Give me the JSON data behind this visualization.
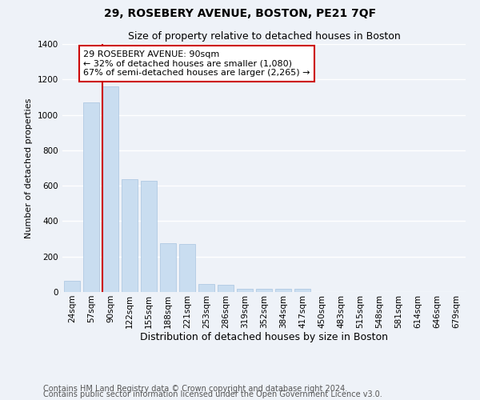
{
  "title": "29, ROSEBERY AVENUE, BOSTON, PE21 7QF",
  "subtitle": "Size of property relative to detached houses in Boston",
  "xlabel": "Distribution of detached houses by size in Boston",
  "ylabel": "Number of detached properties",
  "categories": [
    "24sqm",
    "57sqm",
    "90sqm",
    "122sqm",
    "155sqm",
    "188sqm",
    "221sqm",
    "253sqm",
    "286sqm",
    "319sqm",
    "352sqm",
    "384sqm",
    "417sqm",
    "450sqm",
    "483sqm",
    "515sqm",
    "548sqm",
    "581sqm",
    "614sqm",
    "646sqm",
    "679sqm"
  ],
  "values": [
    65,
    1070,
    1160,
    635,
    630,
    275,
    270,
    45,
    40,
    20,
    20,
    20,
    20,
    0,
    0,
    0,
    0,
    0,
    0,
    0,
    0
  ],
  "bar_color": "#c9ddf0",
  "bar_edge_color": "#a8c4e0",
  "red_line_index": 2,
  "red_line_color": "#cc0000",
  "annotation_line1": "29 ROSEBERY AVENUE: 90sqm",
  "annotation_line2": "← 32% of detached houses are smaller (1,080)",
  "annotation_line3": "67% of semi-detached houses are larger (2,265) →",
  "annotation_box_color": "#ffffff",
  "annotation_box_edge_color": "#cc0000",
  "ylim": [
    0,
    1400
  ],
  "background_color": "#eef2f8",
  "grid_color": "#ffffff",
  "footer_line1": "Contains HM Land Registry data © Crown copyright and database right 2024.",
  "footer_line2": "Contains public sector information licensed under the Open Government Licence v3.0.",
  "title_fontsize": 10,
  "subtitle_fontsize": 9,
  "xlabel_fontsize": 9,
  "ylabel_fontsize": 8,
  "tick_fontsize": 7.5,
  "annotation_fontsize": 8,
  "footer_fontsize": 7
}
